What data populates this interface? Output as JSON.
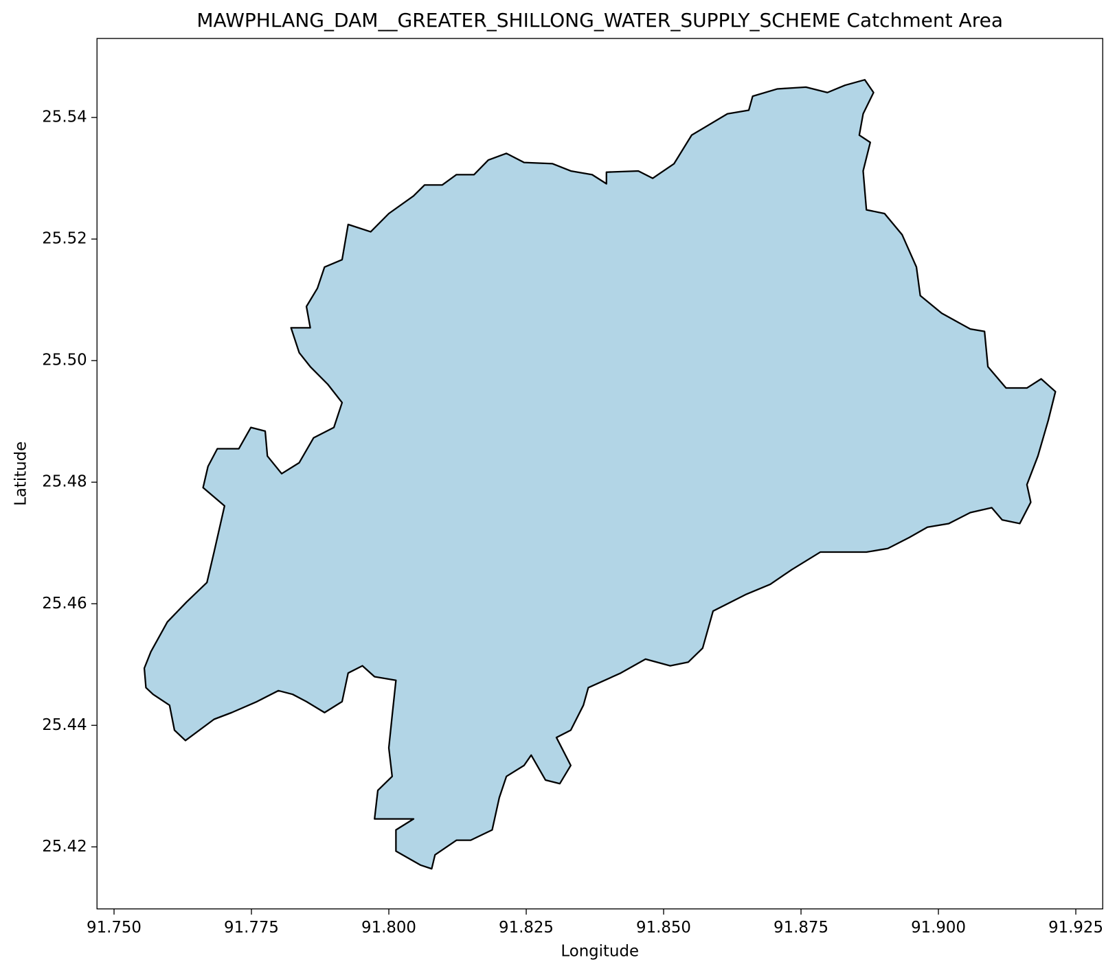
{
  "chart_data": {
    "type": "polygon",
    "title": "MAWPHLANG_DAM__GREATER_SHILLONG_WATER_SUPPLY_SCHEME Catchment Area",
    "xlabel": "Longitude",
    "ylabel": "Latitude",
    "color": "#b2d5e6",
    "edgecolor": "#000000",
    "xlim": [
      91.7469,
      91.9299
    ],
    "ylim": [
      25.4098,
      25.553
    ],
    "xticks": [
      {
        "value": 91.75,
        "label": "91.750"
      },
      {
        "value": 91.775,
        "label": "91.775"
      },
      {
        "value": 91.8,
        "label": "91.800"
      },
      {
        "value": 91.825,
        "label": "91.825"
      },
      {
        "value": 91.85,
        "label": "91.850"
      },
      {
        "value": 91.875,
        "label": "91.875"
      },
      {
        "value": 91.9,
        "label": "91.900"
      },
      {
        "value": 91.925,
        "label": "91.925"
      }
    ],
    "yticks": [
      25.42,
      25.44,
      25.46,
      25.48,
      {
        "value": 25.5,
        "label": "25.50"
      },
      25.52,
      25.54
    ],
    "x": [
      91.7555,
      91.7567,
      91.7597,
      91.7632,
      91.7669,
      91.7682,
      91.7701,
      91.7662,
      91.7671,
      91.7688,
      91.7727,
      91.7749,
      91.7775,
      91.7779,
      91.7805,
      91.7837,
      91.7863,
      91.79,
      91.7915,
      91.7889,
      91.7857,
      91.7837,
      91.7822,
      91.7857,
      91.785,
      91.787,
      91.7883,
      91.7915,
      91.7926,
      91.7967,
      91.8,
      91.8045,
      91.8065,
      91.8097,
      91.8123,
      91.8155,
      91.8181,
      91.8214,
      91.8246,
      91.8298,
      91.8331,
      91.837,
      91.8396,
      91.8396,
      91.8454,
      91.848,
      91.8519,
      91.8551,
      91.8616,
      91.8655,
      91.8662,
      91.8707,
      91.8759,
      91.8798,
      91.883,
      91.8866,
      91.8882,
      91.8863,
      91.8856,
      91.8876,
      91.8863,
      91.8869,
      91.8902,
      91.8934,
      91.896,
      91.8967,
      91.9006,
      91.9058,
      91.9084,
      91.909,
      91.9123,
      91.9161,
      91.9187,
      91.9213,
      91.92,
      91.9181,
      91.9161,
      91.9168,
      91.9148,
      91.9116,
      91.9097,
      91.9058,
      91.9019,
      91.898,
      91.8947,
      91.8908,
      91.8869,
      91.8785,
      91.8733,
      91.8694,
      91.8649,
      91.859,
      91.8571,
      91.8545,
      91.8512,
      91.8467,
      91.8422,
      91.8363,
      91.8354,
      91.8331,
      91.8305,
      91.8331,
      91.8311,
      91.8285,
      91.8259,
      91.8246,
      91.8214,
      91.8201,
      91.8188,
      91.8149,
      91.8123,
      91.8084,
      91.8078,
      91.8058,
      91.8013,
      91.8013,
      91.8045,
      91.7974,
      91.798,
      91.8006,
      91.8,
      91.8006,
      91.8013,
      91.7974,
      91.7952,
      91.7926,
      91.7915,
      91.7883,
      91.785,
      91.7825,
      91.7799,
      91.776,
      91.7714,
      91.7682,
      91.763,
      91.761,
      91.7601,
      91.7571,
      91.7558
    ],
    "values": [
      25.4494,
      25.4521,
      25.457,
      25.4603,
      25.4635,
      25.4685,
      25.4761,
      25.4791,
      25.4826,
      25.4855,
      25.4855,
      25.489,
      25.4884,
      25.4843,
      25.4814,
      25.4832,
      25.4873,
      25.489,
      25.4931,
      25.4961,
      25.499,
      25.5013,
      25.5054,
      25.5054,
      25.5089,
      25.5119,
      25.5154,
      25.5166,
      25.5224,
      25.5212,
      25.5242,
      25.5271,
      25.5289,
      25.5289,
      25.5306,
      25.5306,
      25.533,
      25.5341,
      25.5326,
      25.5324,
      25.5312,
      25.5306,
      25.5291,
      25.531,
      25.5312,
      25.53,
      25.5324,
      25.5371,
      25.5406,
      25.5412,
      25.5435,
      25.5447,
      25.545,
      25.5441,
      25.5453,
      25.5462,
      25.5441,
      25.5406,
      25.5371,
      25.5359,
      25.5312,
      25.5248,
      25.5242,
      25.5207,
      25.5154,
      25.5107,
      25.5078,
      25.5052,
      25.5048,
      25.499,
      25.4955,
      25.4955,
      25.497,
      25.4949,
      25.4902,
      25.4843,
      25.4796,
      25.4767,
      25.4732,
      25.4738,
      25.4758,
      25.475,
      25.4732,
      25.4726,
      25.4709,
      25.4691,
      25.4685,
      25.4685,
      25.4656,
      25.4632,
      25.4615,
      25.4588,
      25.4527,
      25.4504,
      25.4498,
      25.4509,
      25.4486,
      25.4462,
      25.4433,
      25.4392,
      25.438,
      25.4334,
      25.4304,
      25.431,
      25.4351,
      25.4334,
      25.4316,
      25.4281,
      25.4228,
      25.4211,
      25.4211,
      25.4187,
      25.4164,
      25.417,
      25.4193,
      25.4228,
      25.4246,
      25.4246,
      25.4293,
      25.4316,
      25.4363,
      25.4416,
      25.4474,
      25.448,
      25.4498,
      25.4486,
      25.4439,
      25.4421,
      25.4439,
      25.4451,
      25.4457,
      25.4439,
      25.4421,
      25.441,
      25.4375,
      25.4392,
      25.4433,
      25.4451,
      25.4462
    ]
  }
}
